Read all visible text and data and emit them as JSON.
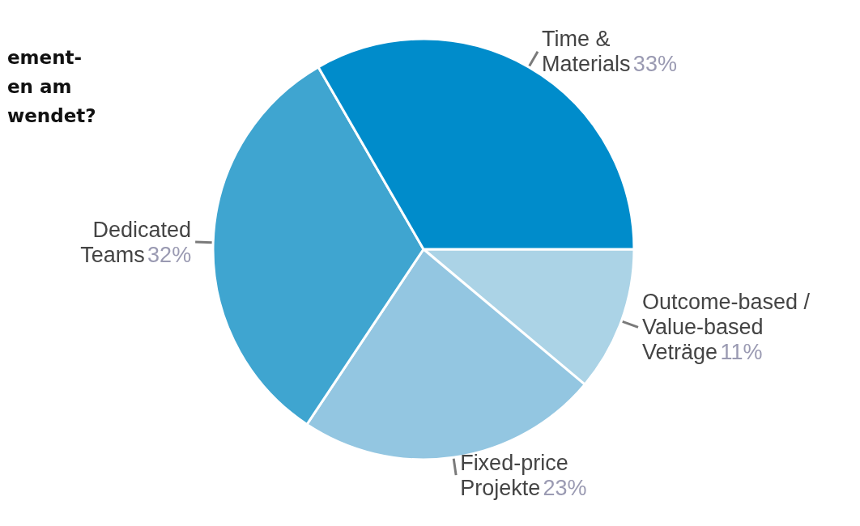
{
  "chart_data": {
    "type": "pie",
    "title": "ement-\nen am\nwendet?",
    "categories": [
      "Outcome-based /\nValue-based\nVeträge",
      "Fixed-price\nProjekte",
      "Dedicated\nTeams",
      "Time &\nMaterials"
    ],
    "values": [
      11,
      23,
      32,
      33
    ],
    "value_labels": [
      "11%",
      "23%",
      "32%",
      "33%"
    ],
    "colors": [
      "#abd3e6",
      "#93c6e1",
      "#3fa5d0",
      "#008ccb"
    ],
    "legend": false
  }
}
